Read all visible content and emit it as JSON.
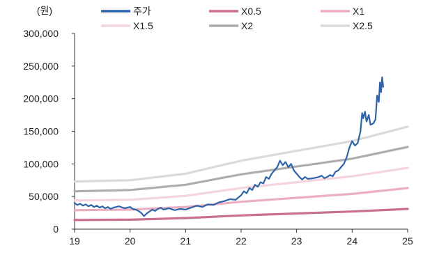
{
  "chart_data": {
    "type": "line",
    "unit_label": "(원)",
    "x_ticks": [
      "19",
      "20",
      "21",
      "22",
      "23",
      "24",
      "25"
    ],
    "x_range": [
      2019.0,
      2025.0
    ],
    "y_ticks": [
      "300,000",
      "250,000",
      "200,000",
      "150,000",
      "100,000",
      "50,000",
      "0"
    ],
    "ylim": [
      0,
      300000
    ],
    "grid": false,
    "legend_position": "top",
    "series": [
      {
        "name": "주가",
        "color": "#2e64a8",
        "width": 2.2,
        "points": [
          [
            2019.0,
            40000
          ],
          [
            2019.05,
            37000
          ],
          [
            2019.1,
            39000
          ],
          [
            2019.15,
            36000
          ],
          [
            2019.2,
            38000
          ],
          [
            2019.25,
            35000
          ],
          [
            2019.3,
            37000
          ],
          [
            2019.35,
            34000
          ],
          [
            2019.4,
            36000
          ],
          [
            2019.45,
            33000
          ],
          [
            2019.5,
            35000
          ],
          [
            2019.55,
            32000
          ],
          [
            2019.6,
            34000
          ],
          [
            2019.65,
            31000
          ],
          [
            2019.7,
            33000
          ],
          [
            2019.8,
            35000
          ],
          [
            2019.9,
            32000
          ],
          [
            2020.0,
            34000
          ],
          [
            2020.05,
            31000
          ],
          [
            2020.1,
            30000
          ],
          [
            2020.15,
            28000
          ],
          [
            2020.2,
            25000
          ],
          [
            2020.25,
            20000
          ],
          [
            2020.3,
            24000
          ],
          [
            2020.35,
            27000
          ],
          [
            2020.4,
            30000
          ],
          [
            2020.45,
            28000
          ],
          [
            2020.5,
            31000
          ],
          [
            2020.55,
            33000
          ],
          [
            2020.6,
            30000
          ],
          [
            2020.7,
            32000
          ],
          [
            2020.8,
            29000
          ],
          [
            2020.9,
            31000
          ],
          [
            2021.0,
            30000
          ],
          [
            2021.1,
            33000
          ],
          [
            2021.2,
            36000
          ],
          [
            2021.3,
            34000
          ],
          [
            2021.4,
            38000
          ],
          [
            2021.5,
            37000
          ],
          [
            2021.6,
            41000
          ],
          [
            2021.7,
            43000
          ],
          [
            2021.8,
            46000
          ],
          [
            2021.9,
            45000
          ],
          [
            2022.0,
            52000
          ],
          [
            2022.05,
            58000
          ],
          [
            2022.1,
            55000
          ],
          [
            2022.15,
            63000
          ],
          [
            2022.2,
            60000
          ],
          [
            2022.25,
            68000
          ],
          [
            2022.3,
            65000
          ],
          [
            2022.35,
            72000
          ],
          [
            2022.4,
            70000
          ],
          [
            2022.45,
            80000
          ],
          [
            2022.5,
            77000
          ],
          [
            2022.55,
            85000
          ],
          [
            2022.6,
            90000
          ],
          [
            2022.65,
            95000
          ],
          [
            2022.7,
            105000
          ],
          [
            2022.75,
            98000
          ],
          [
            2022.8,
            103000
          ],
          [
            2022.85,
            95000
          ],
          [
            2022.9,
            100000
          ],
          [
            2022.95,
            90000
          ],
          [
            2023.0,
            85000
          ],
          [
            2023.05,
            80000
          ],
          [
            2023.1,
            76000
          ],
          [
            2023.15,
            80000
          ],
          [
            2023.2,
            77000
          ],
          [
            2023.3,
            78000
          ],
          [
            2023.4,
            80000
          ],
          [
            2023.45,
            82000
          ],
          [
            2023.5,
            78000
          ],
          [
            2023.55,
            80000
          ],
          [
            2023.6,
            83000
          ],
          [
            2023.65,
            81000
          ],
          [
            2023.7,
            88000
          ],
          [
            2023.75,
            90000
          ],
          [
            2023.8,
            95000
          ],
          [
            2023.85,
            100000
          ],
          [
            2023.9,
            110000
          ],
          [
            2023.95,
            125000
          ],
          [
            2024.0,
            135000
          ],
          [
            2024.05,
            128000
          ],
          [
            2024.1,
            132000
          ],
          [
            2024.15,
            150000
          ],
          [
            2024.18,
            178000
          ],
          [
            2024.2,
            170000
          ],
          [
            2024.23,
            180000
          ],
          [
            2024.26,
            165000
          ],
          [
            2024.3,
            175000
          ],
          [
            2024.33,
            160000
          ],
          [
            2024.38,
            162000
          ],
          [
            2024.42,
            168000
          ],
          [
            2024.45,
            205000
          ],
          [
            2024.48,
            195000
          ],
          [
            2024.5,
            225000
          ],
          [
            2024.52,
            210000
          ],
          [
            2024.54,
            233000
          ],
          [
            2024.56,
            218000
          ]
        ]
      },
      {
        "name": "X0.5",
        "color": "#c8708c",
        "width": 3.2,
        "points": [
          [
            2019.0,
            14000
          ],
          [
            2020.0,
            14500
          ],
          [
            2021.0,
            17000
          ],
          [
            2022.0,
            21000
          ],
          [
            2023.0,
            24000
          ],
          [
            2024.0,
            27000
          ],
          [
            2025.0,
            31000
          ]
        ]
      },
      {
        "name": "X1",
        "color": "#ebaec2",
        "width": 3.2,
        "points": [
          [
            2019.0,
            29000
          ],
          [
            2020.0,
            30000
          ],
          [
            2021.0,
            34000
          ],
          [
            2022.0,
            42000
          ],
          [
            2023.0,
            48000
          ],
          [
            2024.0,
            54000
          ],
          [
            2025.0,
            63000
          ]
        ]
      },
      {
        "name": "X1.5",
        "color": "#f4d4de",
        "width": 3.2,
        "points": [
          [
            2019.0,
            44000
          ],
          [
            2020.0,
            45000
          ],
          [
            2021.0,
            51000
          ],
          [
            2022.0,
            63000
          ],
          [
            2023.0,
            72000
          ],
          [
            2024.0,
            81000
          ],
          [
            2025.0,
            94000
          ]
        ]
      },
      {
        "name": "X2",
        "color": "#adadad",
        "width": 3.2,
        "points": [
          [
            2019.0,
            58000
          ],
          [
            2020.0,
            60000
          ],
          [
            2021.0,
            68000
          ],
          [
            2022.0,
            84000
          ],
          [
            2023.0,
            96000
          ],
          [
            2024.0,
            108000
          ],
          [
            2025.0,
            126000
          ]
        ]
      },
      {
        "name": "X2.5",
        "color": "#dadada",
        "width": 3.2,
        "points": [
          [
            2019.0,
            73000
          ],
          [
            2020.0,
            75000
          ],
          [
            2021.0,
            85000
          ],
          [
            2022.0,
            105000
          ],
          [
            2023.0,
            120000
          ],
          [
            2024.0,
            135000
          ],
          [
            2025.0,
            157000
          ]
        ]
      }
    ]
  }
}
